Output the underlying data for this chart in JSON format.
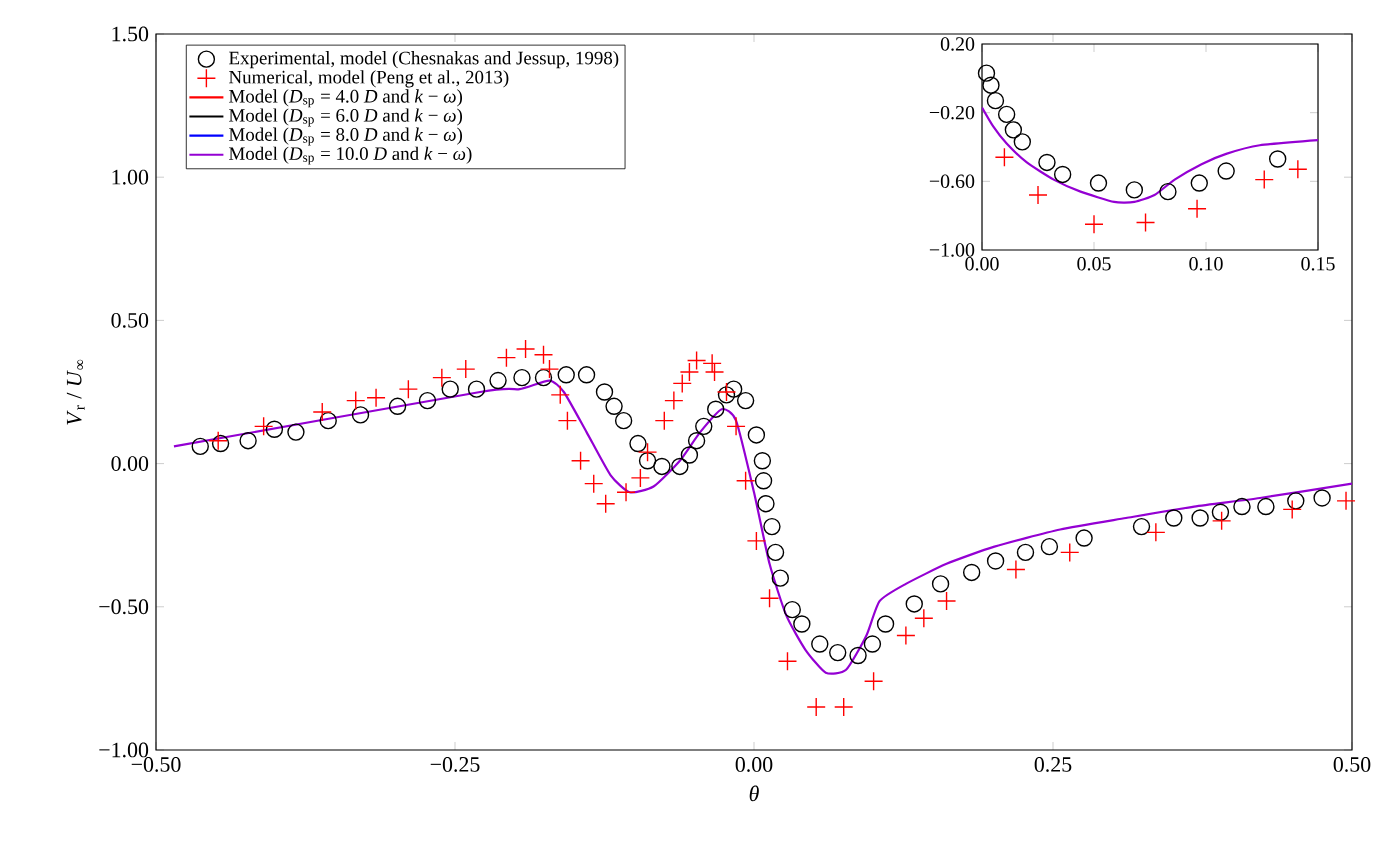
{
  "chart_data": [
    {
      "type": "line",
      "xlabel": "*θ*",
      "ylabel": "*V*$_{r}$ / *U*$_{∞}$",
      "xlim": [
        -0.5,
        0.5
      ],
      "ylim": [
        -1.0,
        1.5
      ],
      "xticks": [
        {
          "value": -0.5,
          "label": "−0.50"
        },
        {
          "value": -0.25,
          "label": "−0.25"
        },
        {
          "value": 0,
          "label": "0.00"
        },
        {
          "value": 0.25,
          "label": "0.25"
        },
        {
          "value": 0.5,
          "label": "0.50"
        }
      ],
      "yticks": [
        {
          "value": -1.0,
          "label": "−1.00"
        },
        {
          "value": -0.5,
          "label": "−0.50"
        },
        {
          "value": 0,
          "label": "0.00"
        },
        {
          "value": 0.5,
          "label": "0.50"
        },
        {
          "value": 1.0,
          "label": "1.00"
        },
        {
          "value": 1.5,
          "label": "1.50"
        }
      ],
      "legend": "top left",
      "series": [
        {
          "name": "Experimental, model (Chesnakas and Jessup, 1998)",
          "type": "scatter",
          "marker": "circle",
          "color": "#000000",
          "x": [
            -0.463,
            -0.446,
            -0.423,
            -0.401,
            -0.383,
            -0.356,
            -0.329,
            -0.298,
            -0.273,
            -0.254,
            -0.232,
            -0.214,
            -0.194,
            -0.176,
            -0.157,
            -0.14,
            -0.125,
            -0.117,
            -0.109,
            -0.097,
            -0.089,
            -0.077,
            -0.062,
            -0.054,
            -0.048,
            -0.042,
            -0.032,
            -0.023,
            -0.017,
            -0.007,
            0.002,
            0.007,
            0.008,
            0.01,
            0.015,
            0.018,
            0.022,
            0.032,
            0.04,
            0.055,
            0.07,
            0.087,
            0.099,
            0.11,
            0.134,
            0.156,
            0.182,
            0.202,
            0.227,
            0.247,
            0.276,
            0.324,
            0.351,
            0.373,
            0.39,
            0.408,
            0.428,
            0.453,
            0.475
          ],
          "values": [
            0.06,
            0.07,
            0.08,
            0.12,
            0.11,
            0.15,
            0.17,
            0.2,
            0.22,
            0.26,
            0.26,
            0.29,
            0.3,
            0.3,
            0.31,
            0.31,
            0.25,
            0.2,
            0.15,
            0.07,
            0.01,
            -0.01,
            -0.01,
            0.03,
            0.08,
            0.13,
            0.19,
            0.24,
            0.26,
            0.22,
            0.1,
            0.01,
            -0.06,
            -0.14,
            -0.22,
            -0.31,
            -0.4,
            -0.51,
            -0.56,
            -0.63,
            -0.66,
            -0.67,
            -0.63,
            -0.56,
            -0.49,
            -0.42,
            -0.38,
            -0.34,
            -0.31,
            -0.29,
            -0.26,
            -0.22,
            -0.19,
            -0.19,
            -0.17,
            -0.15,
            -0.15,
            -0.13,
            -0.12
          ]
        },
        {
          "name": "Numerical, model (Peng et al., 2013)",
          "type": "scatter",
          "marker": "cross",
          "color": "#ff0000",
          "x": [
            -0.448,
            -0.41,
            -0.361,
            -0.333,
            -0.316,
            -0.289,
            -0.261,
            -0.241,
            -0.207,
            -0.191,
            -0.176,
            -0.171,
            -0.162,
            -0.156,
            -0.145,
            -0.134,
            -0.124,
            -0.107,
            -0.095,
            -0.089,
            -0.075,
            -0.067,
            -0.06,
            -0.054,
            -0.048,
            -0.035,
            -0.033,
            -0.023,
            -0.015,
            -0.007,
            0.002,
            0.013,
            0.028,
            0.052,
            0.075,
            0.1,
            0.127,
            0.142,
            0.161,
            0.219,
            0.264,
            0.336,
            0.391,
            0.45,
            0.495
          ],
          "values": [
            0.08,
            0.13,
            0.18,
            0.22,
            0.23,
            0.26,
            0.3,
            0.33,
            0.37,
            0.4,
            0.38,
            0.33,
            0.24,
            0.15,
            0.01,
            -0.07,
            -0.14,
            -0.1,
            -0.05,
            0.04,
            0.15,
            0.22,
            0.28,
            0.32,
            0.36,
            0.35,
            0.32,
            0.25,
            0.13,
            -0.06,
            -0.27,
            -0.47,
            -0.69,
            -0.85,
            -0.85,
            -0.76,
            -0.6,
            -0.54,
            -0.48,
            -0.37,
            -0.31,
            -0.24,
            -0.2,
            -0.16,
            -0.13
          ]
        },
        {
          "name": "Model (*D*$_{sp}$ =   4.0 *D* and *k* − *ω*)",
          "color": "#ff0000",
          "values": [
            null
          ]
        },
        {
          "name": "Model (*D*$_{sp}$ =   6.0 *D* and *k* − *ω*)",
          "color": "#000000",
          "values": [
            null
          ]
        },
        {
          "name": "Model (*D*$_{sp}$ =   8.0 *D* and *k* − *ω*)",
          "color": "#0000ff",
          "values": [
            null
          ]
        },
        {
          "name": "Model (*D*$_{sp}$ = 10.0 *D* and *k* − *ω*)",
          "color": "#9400d3",
          "x": [
            -0.485,
            -0.229,
            -0.196,
            -0.171,
            -0.159,
            -0.14,
            -0.12,
            -0.104,
            -0.084,
            -0.062,
            -0.045,
            -0.027,
            -0.015,
            0.0,
            0.013,
            0.027,
            0.043,
            0.06,
            0.077,
            0.094,
            0.105,
            0.127,
            0.161,
            0.201,
            0.256,
            0.311,
            0.368,
            0.423,
            0.5
          ],
          "values": [
            0.06,
            0.25,
            0.26,
            0.29,
            0.25,
            0.11,
            -0.04,
            -0.1,
            -0.08,
            0.01,
            0.11,
            0.19,
            0.15,
            -0.1,
            -0.35,
            -0.53,
            -0.65,
            -0.73,
            -0.72,
            -0.6,
            -0.48,
            -0.42,
            -0.35,
            -0.29,
            -0.23,
            -0.19,
            -0.15,
            -0.12,
            -0.07
          ]
        }
      ]
    },
    {
      "type": "line",
      "xlim": [
        0,
        0.15
      ],
      "ylim": [
        -1.0,
        0.2
      ],
      "xticks": [
        {
          "value": 0,
          "label": "0.00"
        },
        {
          "value": 0.05,
          "label": "0.05"
        },
        {
          "value": 0.1,
          "label": "0.10"
        },
        {
          "value": 0.15,
          "label": "0.15"
        }
      ],
      "yticks": [
        {
          "value": -1.0,
          "label": "−1.00"
        },
        {
          "value": -0.6,
          "label": "−0.60"
        },
        {
          "value": -0.2,
          "label": "−0.20"
        },
        {
          "value": 0.2,
          "label": "0.20"
        }
      ],
      "series": [
        {
          "type": "scatter",
          "marker": "circle",
          "color": "#000000",
          "x": [
            0.002,
            0.004,
            0.006,
            0.011,
            0.014,
            0.018,
            0.029,
            0.036,
            0.052,
            0.068,
            0.083,
            0.097,
            0.109,
            0.132
          ],
          "values": [
            0.03,
            -0.04,
            -0.13,
            -0.21,
            -0.3,
            -0.37,
            -0.49,
            -0.56,
            -0.61,
            -0.65,
            -0.66,
            -0.61,
            -0.54,
            -0.47
          ]
        },
        {
          "type": "scatter",
          "marker": "cross",
          "color": "#ff0000",
          "x": [
            0.01,
            0.025,
            0.05,
            0.073,
            0.096,
            0.126,
            0.141
          ],
          "values": [
            -0.46,
            -0.68,
            -0.85,
            -0.84,
            -0.76,
            -0.59,
            -0.53
          ]
        },
        {
          "color": "#9400d3",
          "x": [
            0,
            0.005,
            0.011,
            0.02,
            0.032,
            0.044,
            0.059,
            0.068,
            0.077,
            0.086,
            0.098,
            0.109,
            0.124,
            0.15
          ],
          "values": [
            -0.17,
            -0.28,
            -0.38,
            -0.49,
            -0.59,
            -0.66,
            -0.72,
            -0.72,
            -0.68,
            -0.59,
            -0.5,
            -0.44,
            -0.39,
            -0.36
          ]
        }
      ]
    }
  ]
}
